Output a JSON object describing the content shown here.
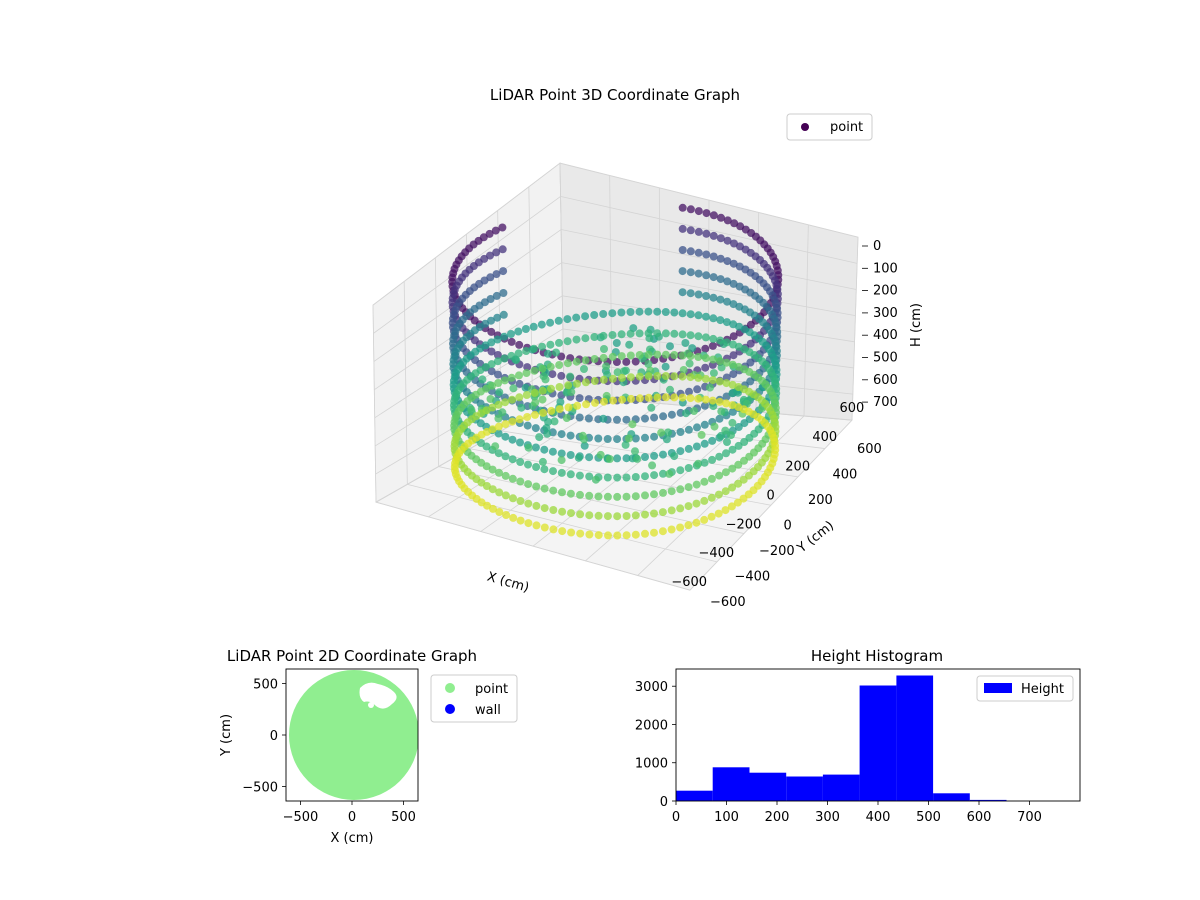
{
  "chart_data": [
    {
      "type": "scatter3d",
      "title": "LiDAR Point 3D Coordinate Graph",
      "xlabel": "X (cm)",
      "ylabel": "Y (cm)",
      "zlabel": "H (cm)",
      "xticks": [
        "−600",
        "−400",
        "−200",
        "0",
        "200",
        "400",
        "600"
      ],
      "yticks": [
        "−600",
        "−400",
        "−200",
        "0",
        "200",
        "400",
        "600"
      ],
      "zticks": [
        "0",
        "100",
        "200",
        "300",
        "400",
        "500",
        "600",
        "700"
      ],
      "xlim": [
        -620,
        620
      ],
      "ylim": [
        -620,
        620
      ],
      "zlim": [
        0,
        750
      ],
      "z_inverted": true,
      "colormap": "viridis",
      "legend": {
        "label": "point",
        "placement": "upper-right",
        "color": "#440154"
      },
      "shape": {
        "type": "cylindrical wall",
        "radius": 620,
        "height_range": [
          0,
          750
        ]
      },
      "grid": true
    },
    {
      "type": "scatter",
      "title": "LiDAR Point 2D Coordinate Graph",
      "xlabel": "X (cm)",
      "ylabel": "Y (cm)",
      "xticks": [
        "−500",
        "0",
        "500"
      ],
      "yticks": [
        "−500",
        "0",
        "500"
      ],
      "xlim": [
        -640,
        640
      ],
      "ylim": [
        -640,
        640
      ],
      "series": [
        {
          "name": "point",
          "color": "#90ee90",
          "shape": {
            "type": "disc",
            "radius": 620
          }
        },
        {
          "name": "wall",
          "color": "#0000ff"
        }
      ],
      "legend": {
        "placement": "outside-right"
      }
    },
    {
      "type": "bar",
      "title": "Height Histogram",
      "xlabel": "",
      "ylabel": "",
      "xticks": [
        "0",
        "100",
        "200",
        "300",
        "400",
        "500",
        "600",
        "700"
      ],
      "yticks": [
        "0",
        "1000",
        "2000",
        "3000"
      ],
      "xlim": [
        0,
        800
      ],
      "ylim": [
        0,
        3450
      ],
      "bin_edges": [
        0,
        72.7,
        145.5,
        218.2,
        290.9,
        363.6,
        436.4,
        509.1,
        581.8,
        654.5,
        727.3,
        800
      ],
      "counts": [
        270,
        880,
        740,
        640,
        690,
        3020,
        3280,
        200,
        30,
        0,
        0
      ],
      "color": "#0000ff",
      "legend": {
        "label": "Height",
        "placement": "upper-right"
      }
    }
  ]
}
